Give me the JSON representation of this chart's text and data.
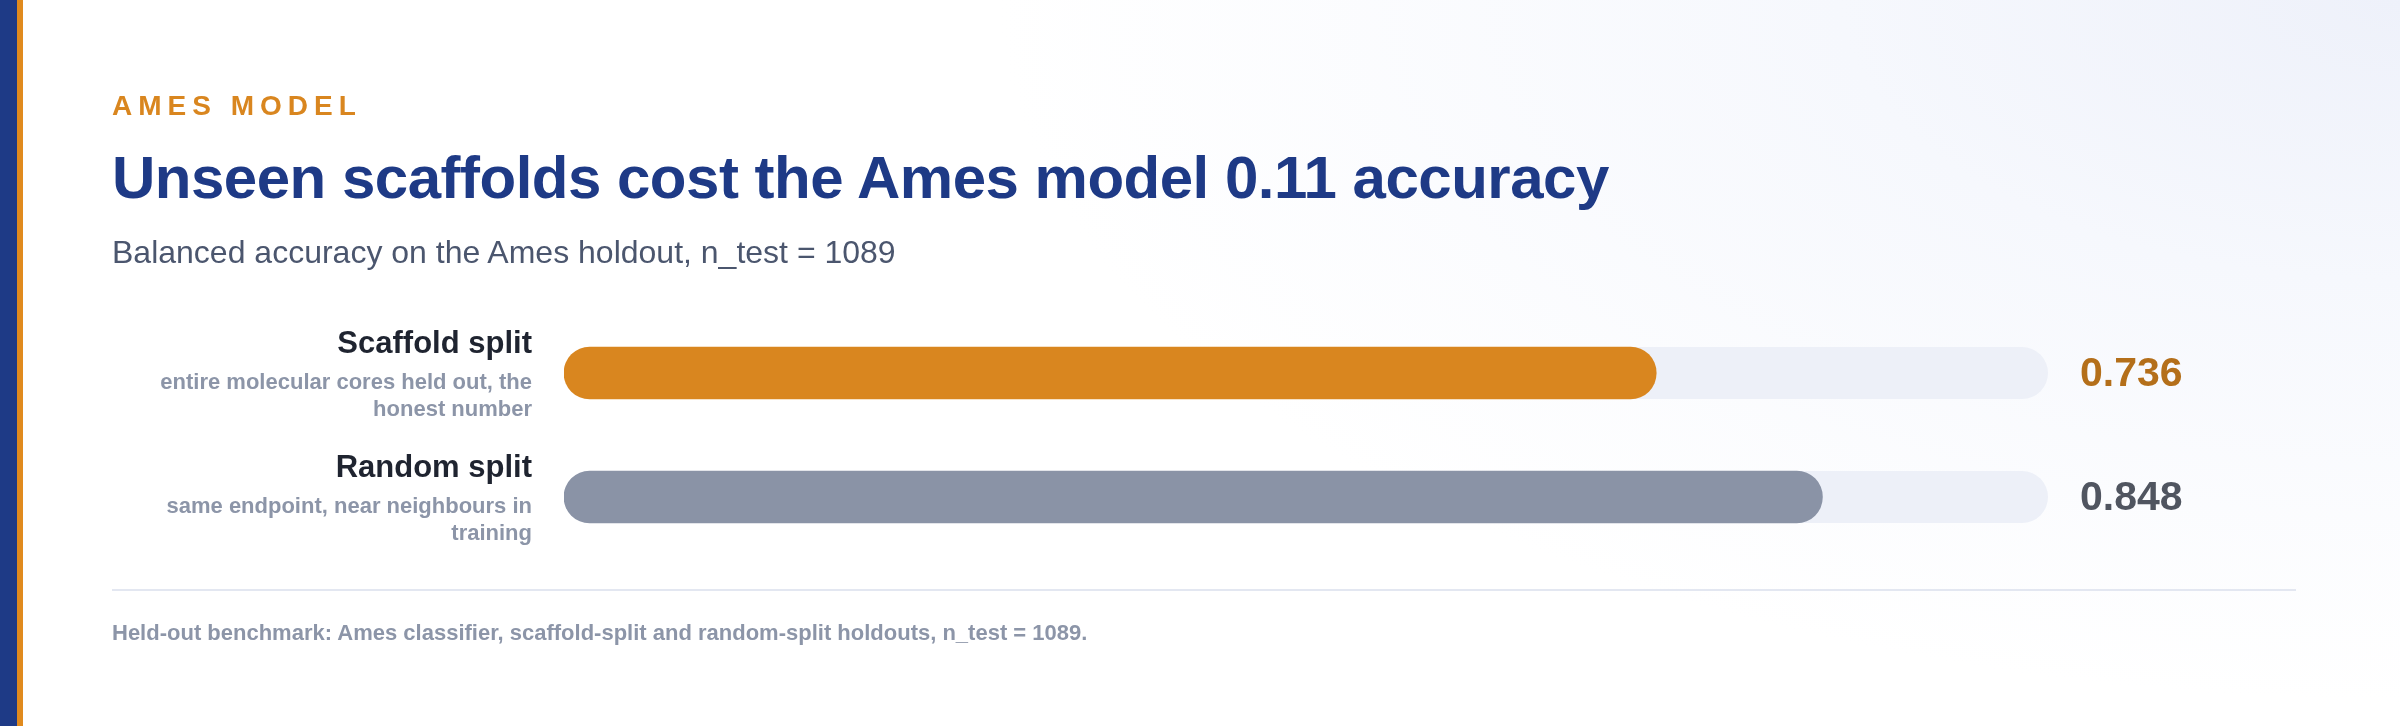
{
  "chart_data": {
    "type": "bar",
    "orientation": "horizontal",
    "title": "Unseen scaffolds cost the Ames model 0.11 accuracy",
    "subtitle": "Balanced accuracy on the Ames holdout, n_test = 1089",
    "categories": [
      "Scaffold split",
      "Random split"
    ],
    "values": [
      0.736,
      0.848
    ],
    "colors": [
      "#d9861f",
      "#8a93a6"
    ],
    "xlim": [
      0,
      1
    ],
    "data_labels": true,
    "annotations": [
      "AMES MODEL",
      "entire molecular cores held out, the honest number",
      "same endpoint, near neighbours in training",
      "Held-out benchmark: Ames classifier, scaffold-split and random-split holdouts, n_test = 1089."
    ]
  }
}
